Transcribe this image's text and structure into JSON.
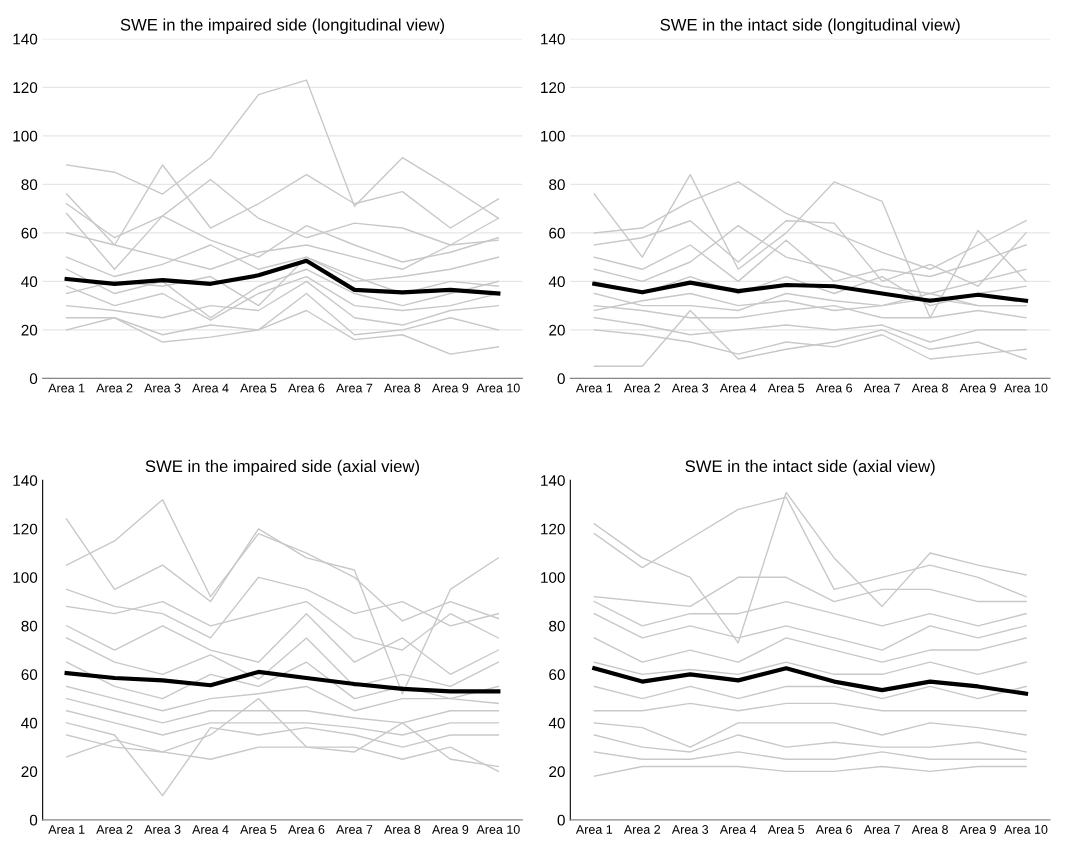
{
  "chart_data": [
    {
      "type": "line",
      "title": "SWE in the impaired side (longitudinal view)",
      "categories": [
        "Area 1",
        "Area 2",
        "Area 3",
        "Area 4",
        "Area 5",
        "Area 6",
        "Area 7",
        "Area 8",
        "Area 9",
        "Area 10"
      ],
      "ylim": [
        0,
        140
      ],
      "yticks": [
        0,
        20,
        40,
        60,
        80,
        100,
        120,
        140
      ],
      "grid": "y",
      "series": [
        {
          "color": "#c8c8c8",
          "values": [
            88,
            85,
            76,
            91,
            117,
            123,
            71,
            91,
            79,
            66
          ]
        },
        {
          "color": "#c8c8c8",
          "values": [
            76,
            55,
            88,
            62,
            72,
            84,
            72,
            77,
            62,
            74
          ]
        },
        {
          "color": "#c8c8c8",
          "values": [
            72,
            58,
            67,
            82,
            66,
            58,
            64,
            62,
            55,
            66
          ]
        },
        {
          "color": "#c8c8c8",
          "values": [
            68,
            45,
            67,
            57,
            50,
            63,
            55,
            48,
            52,
            58
          ]
        },
        {
          "color": "#c8c8c8",
          "values": [
            60,
            55,
            50,
            45,
            52,
            55,
            50,
            45,
            55,
            57
          ]
        },
        {
          "color": "#c8c8c8",
          "values": [
            50,
            42,
            47,
            55,
            45,
            50,
            40,
            42,
            45,
            50
          ]
        },
        {
          "color": "#c8c8c8",
          "values": [
            45,
            35,
            40,
            25,
            38,
            45,
            35,
            30,
            35,
            40
          ]
        },
        {
          "color": "#c8c8c8",
          "values": [
            38,
            30,
            35,
            24,
            35,
            42,
            30,
            28,
            30,
            35
          ]
        },
        {
          "color": "#c8c8c8",
          "values": [
            30,
            28,
            25,
            30,
            28,
            40,
            25,
            22,
            28,
            30
          ]
        },
        {
          "color": "#c8c8c8",
          "values": [
            25,
            25,
            18,
            22,
            20,
            35,
            18,
            20,
            25,
            20
          ]
        },
        {
          "color": "#c8c8c8",
          "values": [
            20,
            25,
            15,
            17,
            20,
            28,
            16,
            18,
            10,
            13
          ]
        },
        {
          "color": "#c8c8c8",
          "values": [
            35,
            40,
            38,
            42,
            30,
            50,
            42,
            35,
            40,
            38
          ]
        },
        {
          "color": "#000000",
          "values": [
            41,
            39,
            40.5,
            39,
            42.5,
            48.5,
            36.5,
            35.5,
            36.5,
            35
          ]
        }
      ]
    },
    {
      "type": "line",
      "title": "SWE in the intact side (longitudinal view)",
      "categories": [
        "Area 1",
        "Area 2",
        "Area 3",
        "Area 4",
        "Area 5",
        "Area 6",
        "Area 7",
        "Area 8",
        "Area 9",
        "Area 10"
      ],
      "ylim": [
        0,
        140
      ],
      "yticks": [
        0,
        20,
        40,
        60,
        80,
        100,
        120,
        140
      ],
      "grid": "y",
      "series": [
        {
          "color": "#c8c8c8",
          "values": [
            76,
            50,
            84,
            45,
            60,
            81,
            73,
            25,
            61,
            40
          ]
        },
        {
          "color": "#c8c8c8",
          "values": [
            60,
            62,
            73,
            81,
            68,
            60,
            52,
            45,
            55,
            65
          ]
        },
        {
          "color": "#c8c8c8",
          "values": [
            55,
            58,
            65,
            48,
            65,
            64,
            40,
            47,
            38,
            60
          ]
        },
        {
          "color": "#c8c8c8",
          "values": [
            50,
            45,
            55,
            40,
            57,
            40,
            45,
            42,
            48,
            55
          ]
        },
        {
          "color": "#c8c8c8",
          "values": [
            45,
            40,
            48,
            63,
            50,
            45,
            38,
            35,
            40,
            45
          ]
        },
        {
          "color": "#c8c8c8",
          "values": [
            40,
            35,
            42,
            35,
            42,
            35,
            42,
            30,
            35,
            38
          ]
        },
        {
          "color": "#c8c8c8",
          "values": [
            35,
            30,
            30,
            28,
            35,
            32,
            30,
            35,
            30,
            30
          ]
        },
        {
          "color": "#c8c8c8",
          "values": [
            30,
            28,
            25,
            25,
            28,
            30,
            25,
            25,
            28,
            25
          ]
        },
        {
          "color": "#c8c8c8",
          "values": [
            25,
            22,
            18,
            20,
            22,
            20,
            22,
            15,
            20,
            20
          ]
        },
        {
          "color": "#c8c8c8",
          "values": [
            20,
            18,
            15,
            10,
            15,
            13,
            18,
            8,
            10,
            12
          ]
        },
        {
          "color": "#c8c8c8",
          "values": [
            5,
            5,
            28,
            8,
            12,
            15,
            20,
            12,
            15,
            8
          ]
        },
        {
          "color": "#c8c8c8",
          "values": [
            28,
            32,
            35,
            30,
            32,
            28,
            30,
            33,
            30,
            30
          ]
        },
        {
          "color": "#000000",
          "values": [
            39,
            35.5,
            39.5,
            36,
            38.5,
            38,
            35,
            32,
            34.5,
            32
          ]
        }
      ]
    },
    {
      "type": "line",
      "title": "SWE in the impaired side (axial view)",
      "categories": [
        "Area 1",
        "Area 2",
        "Area 3",
        "Area 4",
        "Area 5",
        "Area 6",
        "Area 7",
        "Area 8",
        "Area 9",
        "Area 10"
      ],
      "ylim": [
        0,
        140
      ],
      "yticks": [
        0,
        20,
        40,
        60,
        80,
        100,
        120,
        140
      ],
      "grid": false,
      "series": [
        {
          "color": "#c8c8c8",
          "values": [
            124,
            95,
            105,
            90,
            120,
            108,
            103,
            52,
            95,
            108
          ]
        },
        {
          "color": "#c8c8c8",
          "values": [
            105,
            115,
            132,
            92,
            118,
            110,
            100,
            82,
            90,
            83
          ]
        },
        {
          "color": "#c8c8c8",
          "values": [
            95,
            88,
            85,
            75,
            100,
            95,
            85,
            90,
            80,
            85
          ]
        },
        {
          "color": "#c8c8c8",
          "values": [
            88,
            85,
            90,
            80,
            85,
            90,
            75,
            70,
            85,
            75
          ]
        },
        {
          "color": "#c8c8c8",
          "values": [
            80,
            70,
            80,
            70,
            65,
            85,
            65,
            75,
            60,
            70
          ]
        },
        {
          "color": "#c8c8c8",
          "values": [
            75,
            65,
            60,
            68,
            58,
            75,
            55,
            60,
            55,
            65
          ]
        },
        {
          "color": "#c8c8c8",
          "values": [
            65,
            55,
            50,
            60,
            55,
            65,
            50,
            55,
            50,
            55
          ]
        },
        {
          "color": "#c8c8c8",
          "values": [
            55,
            50,
            45,
            50,
            52,
            55,
            45,
            50,
            50,
            48
          ]
        },
        {
          "color": "#c8c8c8",
          "values": [
            50,
            45,
            40,
            45,
            45,
            45,
            42,
            40,
            45,
            45
          ]
        },
        {
          "color": "#c8c8c8",
          "values": [
            45,
            40,
            35,
            40,
            40,
            40,
            38,
            35,
            40,
            40
          ]
        },
        {
          "color": "#c8c8c8",
          "values": [
            40,
            35,
            10,
            38,
            35,
            38,
            35,
            30,
            35,
            35
          ]
        },
        {
          "color": "#c8c8c8",
          "values": [
            35,
            30,
            28,
            25,
            30,
            30,
            30,
            25,
            30,
            20
          ]
        },
        {
          "color": "#c8c8c8",
          "values": [
            26,
            33,
            28,
            35,
            50,
            30,
            28,
            40,
            25,
            22
          ]
        },
        {
          "color": "#000000",
          "values": [
            60.5,
            58.5,
            57.5,
            55.5,
            61,
            58.5,
            56,
            54,
            53,
            53
          ]
        }
      ]
    },
    {
      "type": "line",
      "title": "SWE in the intact side (axial view)",
      "categories": [
        "Area 1",
        "Area 2",
        "Area 3",
        "Area 4",
        "Area 5",
        "Area 6",
        "Area 7",
        "Area 8",
        "Area 9",
        "Area 10"
      ],
      "ylim": [
        0,
        140
      ],
      "yticks": [
        0,
        20,
        40,
        60,
        80,
        100,
        120,
        140
      ],
      "grid": false,
      "series": [
        {
          "color": "#c8c8c8",
          "values": [
            122,
            108,
            100,
            73,
            135,
            108,
            88,
            110,
            105,
            101
          ]
        },
        {
          "color": "#c8c8c8",
          "values": [
            118,
            104,
            116,
            128,
            133,
            95,
            100,
            105,
            100,
            92
          ]
        },
        {
          "color": "#c8c8c8",
          "values": [
            92,
            90,
            88,
            100,
            100,
            90,
            95,
            95,
            90,
            90
          ]
        },
        {
          "color": "#c8c8c8",
          "values": [
            90,
            80,
            85,
            85,
            90,
            85,
            80,
            85,
            80,
            85
          ]
        },
        {
          "color": "#c8c8c8",
          "values": [
            85,
            75,
            80,
            75,
            80,
            75,
            70,
            80,
            75,
            80
          ]
        },
        {
          "color": "#c8c8c8",
          "values": [
            75,
            65,
            70,
            65,
            75,
            70,
            65,
            70,
            70,
            75
          ]
        },
        {
          "color": "#c8c8c8",
          "values": [
            65,
            60,
            62,
            60,
            65,
            60,
            60,
            65,
            60,
            65
          ]
        },
        {
          "color": "#c8c8c8",
          "values": [
            55,
            50,
            55,
            50,
            55,
            55,
            50,
            55,
            50,
            55
          ]
        },
        {
          "color": "#c8c8c8",
          "values": [
            45,
            45,
            48,
            45,
            48,
            48,
            45,
            45,
            45,
            45
          ]
        },
        {
          "color": "#c8c8c8",
          "values": [
            40,
            38,
            30,
            40,
            40,
            40,
            35,
            40,
            38,
            35
          ]
        },
        {
          "color": "#c8c8c8",
          "values": [
            35,
            30,
            28,
            35,
            30,
            32,
            30,
            30,
            32,
            28
          ]
        },
        {
          "color": "#c8c8c8",
          "values": [
            28,
            25,
            25,
            28,
            25,
            25,
            28,
            25,
            25,
            25
          ]
        },
        {
          "color": "#c8c8c8",
          "values": [
            18,
            22,
            22,
            22,
            20,
            20,
            22,
            20,
            22,
            22
          ]
        },
        {
          "color": "#000000",
          "values": [
            62.5,
            57,
            60,
            57.5,
            62.5,
            57,
            53.5,
            57,
            55,
            52
          ]
        }
      ]
    }
  ]
}
